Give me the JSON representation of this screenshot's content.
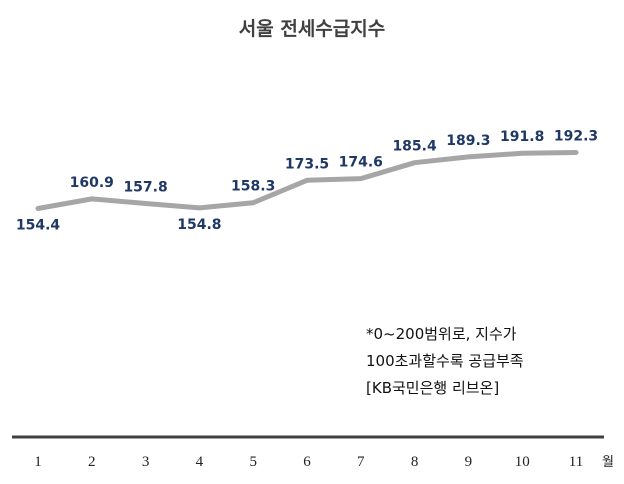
{
  "chart_data": {
    "type": "line",
    "title": "서울 전세수급지수",
    "x": [
      "1",
      "2",
      "3",
      "4",
      "5",
      "6",
      "7",
      "8",
      "9",
      "10",
      "11"
    ],
    "x_unit": "월",
    "values": [
      154.4,
      160.9,
      157.8,
      154.8,
      158.3,
      173.5,
      174.6,
      185.4,
      189.3,
      191.8,
      192.3
    ],
    "data_labels": [
      "154.4",
      "160.9",
      "157.8",
      "154.8",
      "158.3",
      "173.5",
      "174.6",
      "185.4",
      "189.3",
      "191.8",
      "192.3"
    ],
    "colors": {
      "line": "#a6a6a6",
      "label": "#1f3864",
      "axis": "#404040"
    },
    "grid": false,
    "legend": "none"
  },
  "notes": [
    "*0~200범위로, 지수가",
    "100초과할수록 공급부족",
    "[KB국민은행 리브온]"
  ]
}
